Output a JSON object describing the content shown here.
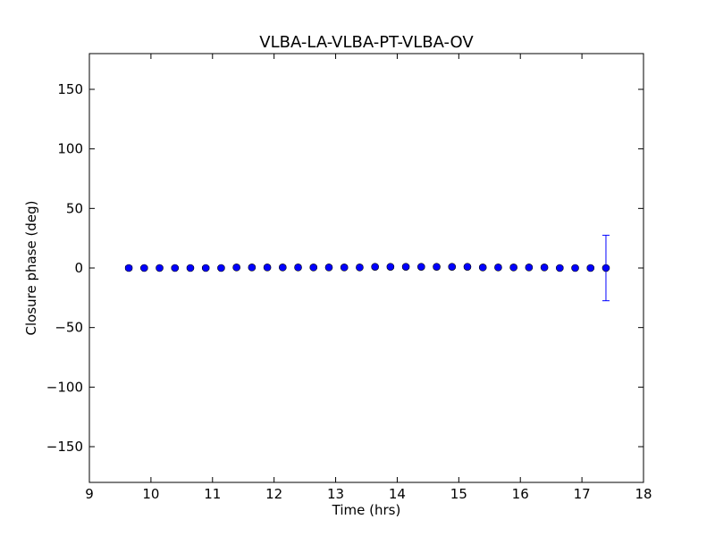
{
  "chart_data": {
    "type": "scatter",
    "title": "VLBA-LA-VLBA-PT-VLBA-OV",
    "xlabel": "Time (hrs)",
    "ylabel": "Closure phase (deg)",
    "xlim": [
      9,
      18
    ],
    "ylim": [
      -180,
      180
    ],
    "xticks": [
      9,
      10,
      11,
      12,
      13,
      14,
      15,
      16,
      17,
      18
    ],
    "xtick_labels": [
      "9",
      "10",
      "11",
      "12",
      "13",
      "14",
      "15",
      "16",
      "17",
      "18"
    ],
    "yticks": [
      -150,
      -100,
      -50,
      0,
      50,
      100,
      150
    ],
    "ytick_labels": [
      "−150",
      "−100",
      "−50",
      "0",
      "50",
      "100",
      "150"
    ],
    "grid": false,
    "marker_color": "#0000ff",
    "series": [
      {
        "x": [
          9.64,
          9.89,
          10.14,
          10.39,
          10.64,
          10.89,
          11.14,
          11.39,
          11.64,
          11.89,
          12.14,
          12.39,
          12.64,
          12.89,
          13.14,
          13.39,
          13.64,
          13.89,
          14.14,
          14.39,
          14.64,
          14.89,
          15.14,
          15.39,
          15.64,
          15.89,
          16.14,
          16.39,
          16.64,
          16.89,
          17.14,
          17.39
        ],
        "y": [
          0,
          0,
          0,
          0,
          0,
          0,
          0,
          0.5,
          0.5,
          0.5,
          0.5,
          0.5,
          0.5,
          0.5,
          0.5,
          0.5,
          1,
          1,
          1,
          1,
          1,
          1,
          1,
          0.5,
          0.5,
          0.5,
          0.5,
          0.5,
          0,
          0,
          0,
          0
        ],
        "yerr": [
          1.5,
          1,
          1,
          1,
          1,
          1,
          1,
          1,
          1,
          1,
          1,
          1,
          1,
          1,
          1,
          1,
          1,
          1,
          1,
          1,
          1,
          1,
          1,
          1,
          1,
          1,
          1,
          1,
          1,
          1,
          1,
          27.5
        ]
      }
    ]
  }
}
